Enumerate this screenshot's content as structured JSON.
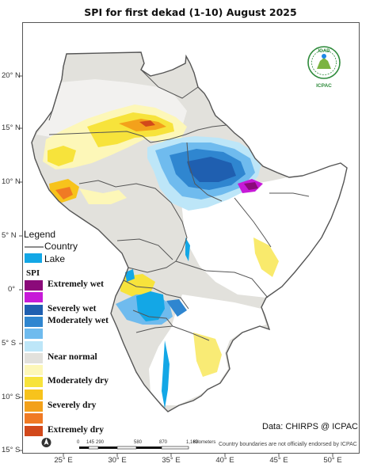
{
  "title": "SPI  for   first  dekad (1-10)  August 2025",
  "axes": {
    "lat_labels": [
      "20° N",
      "15° N",
      "10° N",
      "5° N",
      "0°",
      "5° S",
      "10° S",
      "15° S"
    ],
    "lon_labels": [
      "25° E",
      "30° E",
      "35° E",
      "40° E",
      "45° E",
      "50° E"
    ]
  },
  "legend": {
    "title": "Legend",
    "country_label": "Country",
    "lake_label": "Lake",
    "spi_title": "SPI",
    "classes": [
      {
        "label": "Extremely wet",
        "color": "#8b0a7a"
      },
      {
        "label": "",
        "color": "#c71ad8"
      },
      {
        "label": "Severely wet",
        "color": "#1f5fb0"
      },
      {
        "label": "Moderately wet",
        "color": "#2f86d0"
      },
      {
        "label": "",
        "color": "#6fbbee"
      },
      {
        "label": "",
        "color": "#bde6f8"
      },
      {
        "label": "Near normal",
        "color": "#e2e1dc"
      },
      {
        "label": "",
        "color": "#fdf7b8"
      },
      {
        "label": "Moderately dry",
        "color": "#f7e33b"
      },
      {
        "label": "",
        "color": "#f7c31c"
      },
      {
        "label": "Severely dry",
        "color": "#f3a11b"
      },
      {
        "label": "",
        "color": "#f07a24"
      },
      {
        "label": "Extremely dry",
        "color": "#d2491b"
      }
    ],
    "lake_color": "#13a7e6",
    "country_color": "#666666"
  },
  "credit": "Data: CHIRPS @ ICPAC",
  "disclaimer": "Country boundaries are not officially endorsed by ICPAC",
  "scale_bar": {
    "ticks": [
      "0",
      "145",
      "290",
      "580",
      "870",
      "1,160"
    ],
    "unit": "Kilometers"
  },
  "logo": {
    "top_text": "IGAD",
    "bottom_text": "ICPAC"
  },
  "north_arrow": {
    "letter": "N"
  }
}
